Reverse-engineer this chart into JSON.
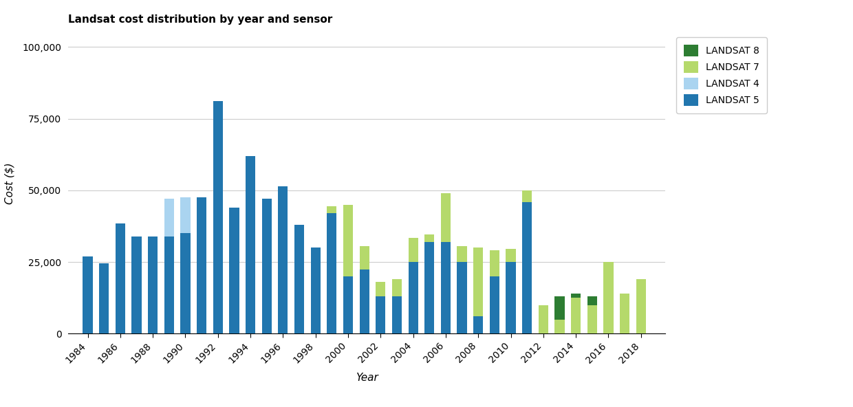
{
  "title": "Landsat cost distribution by year and sensor",
  "xlabel": "Year",
  "ylabel": "Cost ($)",
  "years": [
    1984,
    1985,
    1986,
    1987,
    1988,
    1989,
    1990,
    1991,
    1992,
    1993,
    1994,
    1995,
    1996,
    1997,
    1998,
    1999,
    2000,
    2001,
    2002,
    2003,
    2004,
    2005,
    2006,
    2007,
    2008,
    2009,
    2010,
    2011,
    2012,
    2013,
    2014,
    2015,
    2016,
    2017,
    2018
  ],
  "landsat5": [
    27000,
    24500,
    38500,
    34000,
    34000,
    34000,
    35000,
    47500,
    81000,
    44000,
    62000,
    47000,
    51500,
    38000,
    30000,
    42000,
    20000,
    22500,
    13000,
    13000,
    25000,
    32000,
    32000,
    25000,
    6000,
    20000,
    25000,
    46000,
    0,
    0,
    0,
    0,
    0,
    0,
    0
  ],
  "landsat4": [
    0,
    0,
    0,
    0,
    0,
    13000,
    12500,
    0,
    0,
    0,
    0,
    0,
    0,
    0,
    0,
    0,
    0,
    0,
    0,
    0,
    0,
    0,
    0,
    0,
    0,
    0,
    0,
    0,
    0,
    0,
    0,
    0,
    0,
    0,
    0
  ],
  "landsat7": [
    0,
    0,
    0,
    0,
    0,
    0,
    0,
    0,
    0,
    0,
    0,
    0,
    0,
    0,
    0,
    2500,
    25000,
    8000,
    5000,
    6000,
    8500,
    2500,
    17000,
    5500,
    24000,
    9000,
    4500,
    4000,
    10000,
    5000,
    12500,
    10000,
    25000,
    14000,
    19000
  ],
  "landsat8": [
    0,
    0,
    0,
    0,
    0,
    0,
    0,
    0,
    0,
    0,
    0,
    0,
    0,
    0,
    0,
    0,
    0,
    0,
    0,
    0,
    0,
    0,
    0,
    0,
    0,
    0,
    0,
    0,
    0,
    8000,
    1500,
    3000,
    0,
    0,
    0
  ],
  "color_l5": "#2176ae",
  "color_l4": "#aad4f0",
  "color_l7": "#b5d96b",
  "color_l8": "#2d7d32",
  "ylim": [
    0,
    105000
  ],
  "yticks": [
    0,
    25000,
    50000,
    75000,
    100000
  ],
  "ytick_labels": [
    "0",
    "25,000",
    "50,000",
    "75,000",
    "100,000"
  ],
  "background_color": "#ffffff",
  "grid_color": "#cccccc"
}
